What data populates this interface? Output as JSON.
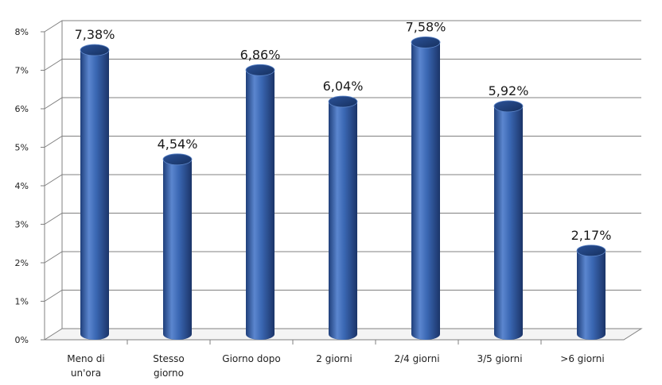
{
  "chart_data": {
    "type": "bar",
    "categories": [
      [
        "Meno di",
        "un'ora"
      ],
      [
        "Stesso",
        "giorno"
      ],
      [
        "Giorno dopo"
      ],
      [
        "2 giorni"
      ],
      [
        "2/4 giorni"
      ],
      [
        "3/5 giorni"
      ],
      [
        ">6 giorni"
      ]
    ],
    "values": [
      7.38,
      4.54,
      6.86,
      6.04,
      7.58,
      5.92,
      2.17
    ],
    "data_labels": [
      "7,38%",
      "4,54%",
      "6,86%",
      "6,04%",
      "7,58%",
      "5,92%",
      "2,17%"
    ],
    "y_ticks": [
      "0%",
      "1%",
      "2%",
      "3%",
      "4%",
      "5%",
      "6%",
      "7%",
      "8%"
    ],
    "ylim": [
      0,
      8
    ],
    "grid": true,
    "style": "3d-cylinder",
    "colors": {
      "bar": "#3a67b3",
      "bar_dark": "#1f3f7a",
      "bar_light": "#7fa6e0",
      "grid": "#808080"
    }
  }
}
